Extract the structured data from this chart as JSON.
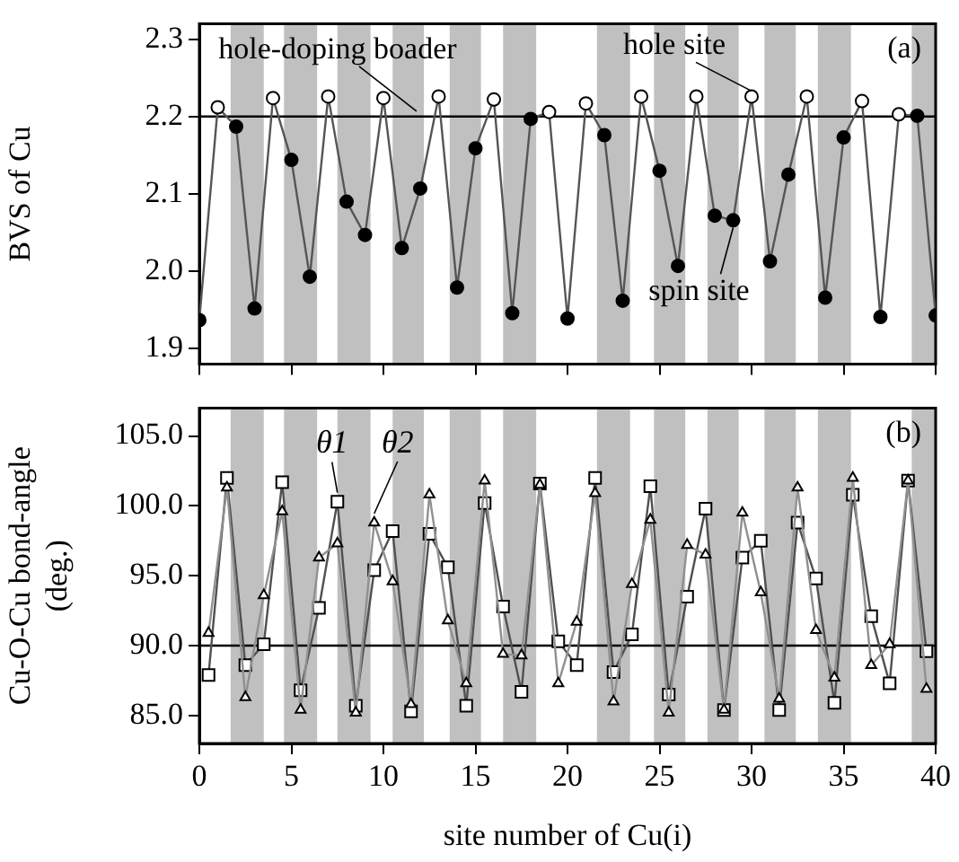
{
  "chart_data": [
    {
      "type": "line",
      "ylabel": "BVS of Cu",
      "xlim": [
        0,
        40
      ],
      "xticks": [
        0,
        5,
        10,
        15,
        20,
        25,
        30,
        35,
        40
      ],
      "ylim": [
        1.88,
        2.32
      ],
      "yticks": [
        {
          "value": 1.9,
          "label": "1.9"
        },
        {
          "value": 2,
          "label": "2.0"
        },
        {
          "value": 2.1,
          "label": "2.1"
        },
        {
          "value": 2.2,
          "label": "2.2"
        },
        {
          "value": 2.3,
          "label": "2.3"
        }
      ],
      "tick_labels": "y",
      "marker": "circle",
      "x": [
        0,
        1,
        2,
        3,
        4,
        5,
        6,
        7,
        8,
        9,
        10,
        11,
        12,
        13,
        14,
        15,
        16,
        17,
        18,
        19,
        20,
        21,
        22,
        23,
        24,
        25,
        26,
        27,
        28,
        29,
        30,
        31,
        32,
        33,
        34,
        35,
        36,
        37,
        38,
        39,
        40
      ],
      "series": [
        {
          "color": "#555555",
          "values": [
            1.937,
            2.212,
            2.187,
            1.952,
            2.224,
            2.144,
            1.993,
            2.226,
            2.09,
            2.047,
            2.224,
            2.03,
            2.107,
            2.226,
            1.979,
            2.159,
            2.222,
            1.946,
            2.197,
            2.206,
            1.939,
            2.217,
            2.176,
            1.962,
            2.226,
            2.13,
            2.007,
            2.226,
            2.072,
            2.066,
            2.226,
            2.013,
            2.125,
            2.226,
            1.966,
            2.173,
            2.22,
            1.941,
            2.203,
            2.201,
            1.943
          ],
          "colors": [
            "#000000",
            "#ffffff",
            "#000000",
            "#000000",
            "#ffffff",
            "#000000",
            "#000000",
            "#ffffff",
            "#000000",
            "#000000",
            "#ffffff",
            "#000000",
            "#000000",
            "#ffffff",
            "#000000",
            "#000000",
            "#ffffff",
            "#000000",
            "#000000",
            "#ffffff",
            "#000000",
            "#ffffff",
            "#000000",
            "#000000",
            "#ffffff",
            "#000000",
            "#000000",
            "#ffffff",
            "#000000",
            "#000000",
            "#ffffff",
            "#000000",
            "#000000",
            "#ffffff",
            "#000000",
            "#000000",
            "#ffffff",
            "#000000",
            "#ffffff",
            "#000000",
            "#000000"
          ]
        }
      ],
      "bands": [
        {
          "axis": "x",
          "from": 1.7,
          "to": 3.5,
          "color": "#c0c0c0"
        },
        {
          "axis": "x",
          "from": 4.6,
          "to": 6.4,
          "color": "#c0c0c0"
        },
        {
          "axis": "x",
          "from": 7.5,
          "to": 9.3,
          "color": "#c0c0c0"
        },
        {
          "axis": "x",
          "from": 10.5,
          "to": 12.2,
          "color": "#c0c0c0"
        },
        {
          "axis": "x",
          "from": 13.6,
          "to": 15.3,
          "color": "#c0c0c0"
        },
        {
          "axis": "x",
          "from": 16.5,
          "to": 18.3,
          "color": "#c0c0c0"
        },
        {
          "axis": "x",
          "from": 21.6,
          "to": 23.4,
          "color": "#c0c0c0"
        },
        {
          "axis": "x",
          "from": 24.7,
          "to": 26.4,
          "color": "#c0c0c0"
        },
        {
          "axis": "x",
          "from": 27.6,
          "to": 29.3,
          "color": "#c0c0c0"
        },
        {
          "axis": "x",
          "from": 30.7,
          "to": 32.4,
          "color": "#c0c0c0"
        },
        {
          "axis": "x",
          "from": 33.6,
          "to": 35.4,
          "color": "#c0c0c0"
        },
        {
          "axis": "x",
          "from": 38.7,
          "to": 40,
          "color": "#c0c0c0"
        }
      ],
      "ref_lines": [
        {
          "axis": "y",
          "value": 2.2,
          "color": "#000000"
        }
      ],
      "annotations": [
        {
          "text": "hole-doping boader",
          "x": 11.8,
          "y": 2.2
        },
        {
          "text": "hole site",
          "x": 30,
          "y": 2.226
        },
        {
          "text": "spin site",
          "x": 29,
          "y": 2.066
        },
        "(a)"
      ]
    },
    {
      "type": "line",
      "xlabel": "site number of Cu(i)",
      "ylabel": "Cu-O-Cu bond-angle\n(deg.)",
      "xlim": [
        0,
        40
      ],
      "xticks": [
        0,
        5,
        10,
        15,
        20,
        25,
        30,
        35,
        40
      ],
      "ylim": [
        83,
        107
      ],
      "yticks": [
        {
          "value": 85,
          "label": "85.0"
        },
        {
          "value": 90,
          "label": "90.0"
        },
        {
          "value": 95,
          "label": "95.0"
        },
        {
          "value": 100,
          "label": "100.0"
        },
        {
          "value": 105,
          "label": "105.0"
        }
      ],
      "x": [
        0.5,
        1.5,
        2.5,
        3.5,
        4.5,
        5.5,
        6.5,
        7.5,
        8.5,
        9.5,
        10.5,
        11.5,
        12.5,
        13.5,
        14.5,
        15.5,
        16.5,
        17.5,
        18.5,
        19.5,
        20.5,
        21.5,
        22.5,
        23.5,
        24.5,
        25.5,
        26.5,
        27.5,
        28.5,
        29.5,
        30.5,
        31.5,
        32.5,
        33.5,
        34.5,
        35.5,
        36.5,
        37.5,
        38.5,
        39.5
      ],
      "series": [
        {
          "name": "θ1",
          "marker": "square",
          "color": "#505050",
          "values": [
            87.9,
            102.0,
            88.6,
            90.1,
            101.7,
            86.8,
            92.7,
            100.3,
            85.7,
            95.4,
            98.2,
            85.3,
            98.0,
            95.6,
            85.7,
            100.2,
            92.8,
            86.7,
            101.6,
            90.3,
            88.6,
            102.0,
            88.1,
            90.8,
            101.4,
            86.5,
            93.5,
            99.8,
            85.4,
            96.3,
            97.5,
            85.4,
            98.8,
            94.8,
            85.9,
            100.8,
            92.1,
            87.3,
            101.8,
            89.6
          ]
        },
        {
          "name": "θ2",
          "marker": "triangle",
          "color": "#909090",
          "values": [
            90.9,
            101.3,
            86.3,
            93.6,
            99.6,
            85.4,
            96.3,
            97.3,
            85.2,
            98.8,
            94.6,
            85.8,
            100.8,
            91.8,
            87.3,
            101.8,
            89.4,
            89.3,
            101.5,
            87.3,
            91.7,
            100.9,
            86.0,
            94.4,
            99.0,
            85.2,
            97.2,
            96.5,
            85.4,
            99.5,
            93.8,
            86.2,
            101.3,
            91.1,
            87.7,
            102.0,
            88.6,
            90.1,
            101.8,
            86.9
          ]
        }
      ],
      "bands": [
        {
          "axis": "x",
          "from": 1.7,
          "to": 3.5,
          "color": "#c0c0c0"
        },
        {
          "axis": "x",
          "from": 4.6,
          "to": 6.4,
          "color": "#c0c0c0"
        },
        {
          "axis": "x",
          "from": 7.5,
          "to": 9.3,
          "color": "#c0c0c0"
        },
        {
          "axis": "x",
          "from": 10.5,
          "to": 12.2,
          "color": "#c0c0c0"
        },
        {
          "axis": "x",
          "from": 13.6,
          "to": 15.3,
          "color": "#c0c0c0"
        },
        {
          "axis": "x",
          "from": 16.5,
          "to": 18.3,
          "color": "#c0c0c0"
        },
        {
          "axis": "x",
          "from": 21.6,
          "to": 23.4,
          "color": "#c0c0c0"
        },
        {
          "axis": "x",
          "from": 24.7,
          "to": 26.4,
          "color": "#c0c0c0"
        },
        {
          "axis": "x",
          "from": 27.6,
          "to": 29.3,
          "color": "#c0c0c0"
        },
        {
          "axis": "x",
          "from": 30.7,
          "to": 32.4,
          "color": "#c0c0c0"
        },
        {
          "axis": "x",
          "from": 33.6,
          "to": 35.4,
          "color": "#c0c0c0"
        },
        {
          "axis": "x",
          "from": 38.7,
          "to": 40,
          "color": "#c0c0c0"
        }
      ],
      "ref_lines": [
        {
          "axis": "y",
          "value": 90,
          "color": "#000000"
        }
      ],
      "annotations": [
        "(b)"
      ]
    }
  ]
}
